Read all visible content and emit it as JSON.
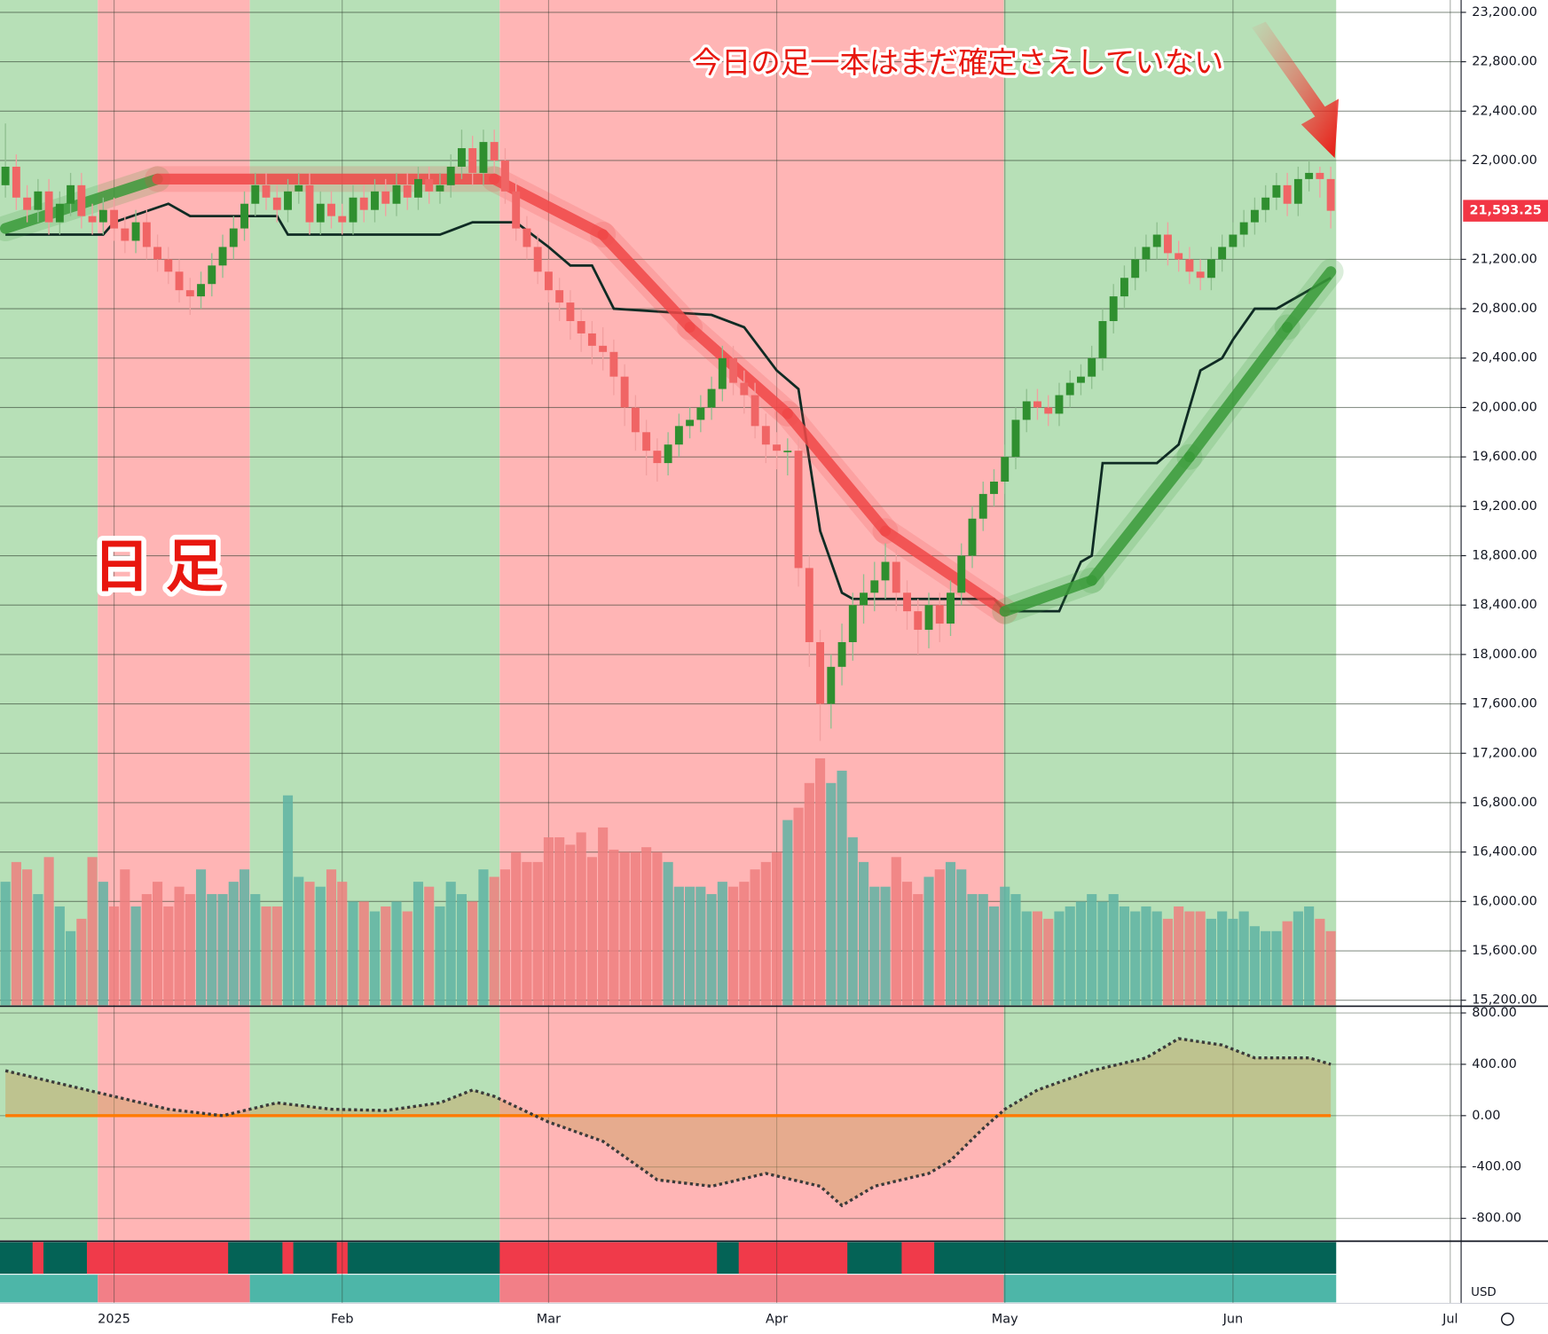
{
  "chart_data": {
    "type": "candlestick",
    "annotations": [
      "今日の足一本はまだ確定さえしていない",
      "日足"
    ],
    "currency": "USD",
    "grid": true,
    "xlim": [
      -0.5,
      134
    ],
    "xticks": [
      {
        "value": 10,
        "label": "2025"
      },
      {
        "value": 31,
        "label": "Feb"
      },
      {
        "value": 50,
        "label": "Mar"
      },
      {
        "value": 71,
        "label": "Apr"
      },
      {
        "value": 92,
        "label": "May"
      },
      {
        "value": 113,
        "label": "Jun"
      },
      {
        "value": 133,
        "label": "Jul"
      }
    ],
    "ylim": [
      15160,
      23300
    ],
    "yticks": [
      {
        "value": 15200,
        "label": "15,200.00"
      },
      {
        "value": 15600,
        "label": "15,600.00"
      },
      {
        "value": 16000,
        "label": "16,000.00"
      },
      {
        "value": 16400,
        "label": "16,400.00"
      },
      {
        "value": 16800,
        "label": "16,800.00"
      },
      {
        "value": 17200,
        "label": "17,200.00"
      },
      {
        "value": 17600,
        "label": "17,600.00"
      },
      {
        "value": 18000,
        "label": "18,000.00"
      },
      {
        "value": 18400,
        "label": "18,400.00"
      },
      {
        "value": 18800,
        "label": "18,800.00"
      },
      {
        "value": 19200,
        "label": "19,200.00"
      },
      {
        "value": 19600,
        "label": "19,600.00"
      },
      {
        "value": 20000,
        "label": "20,000.00"
      },
      {
        "value": 20400,
        "label": "20,400.00"
      },
      {
        "value": 20800,
        "label": "20,800.00"
      },
      {
        "value": 21200,
        "label": "21,200.00"
      },
      {
        "value": 22000,
        "label": "22,000.00"
      },
      {
        "value": 22400,
        "label": "22,400.00"
      },
      {
        "value": 22800,
        "label": "22,800.00"
      },
      {
        "value": 23200,
        "label": "23,200.00"
      }
    ],
    "last_price": {
      "value": 21593.25,
      "label": "21,593.25",
      "color": "#f23645"
    },
    "colors": {
      "up": "#2f8f2f",
      "down": "#f06565"
    },
    "open": [
      21800,
      21950,
      21700,
      21600,
      21750,
      21500,
      21650,
      21800,
      21550,
      21500,
      21600,
      21450,
      21350,
      21500,
      21300,
      21200,
      21100,
      20950,
      20900,
      21000,
      21150,
      21300,
      21450,
      21650,
      21800,
      21700,
      21600,
      21750,
      21800,
      21500,
      21650,
      21550,
      21500,
      21700,
      21600,
      21750,
      21650,
      21800,
      21700,
      21850,
      21750,
      21800,
      21950,
      22100,
      21900,
      22150,
      22000,
      21750,
      21450,
      21300,
      21100,
      20950,
      20850,
      20700,
      20600,
      20500,
      20450,
      20250,
      20000,
      19800,
      19650,
      19550,
      19700,
      19850,
      19900,
      20000,
      20150,
      20400,
      20200,
      20100,
      19850,
      19700,
      19650,
      19650,
      18700,
      18100,
      17600,
      17900,
      18100,
      18400,
      18500,
      18600,
      18750,
      18500,
      18350,
      18200,
      18400,
      18250,
      18500,
      18800,
      19100,
      19300,
      19400,
      19600,
      19900,
      20050,
      20000,
      19950,
      20100,
      20200,
      20250,
      20400,
      20700,
      20900,
      21050,
      21200,
      21300,
      21400,
      21250,
      21200,
      21100,
      21050,
      21200,
      21300,
      21400,
      21500,
      21600,
      21700,
      21800,
      21650,
      21850,
      21900,
      21850
    ],
    "high": [
      22300,
      22050,
      21800,
      21850,
      21850,
      21750,
      21900,
      21900,
      21650,
      21700,
      21700,
      21550,
      21600,
      21600,
      21400,
      21300,
      21200,
      21050,
      21100,
      21250,
      21400,
      21550,
      21750,
      21900,
      21900,
      21800,
      21850,
      21900,
      21900,
      21750,
      21750,
      21650,
      21800,
      21800,
      21850,
      21850,
      21900,
      21900,
      21950,
      21950,
      21900,
      22050,
      22250,
      22200,
      22250,
      22250,
      22100,
      21850,
      21550,
      21400,
      21200,
      21050,
      20950,
      20800,
      20700,
      20650,
      20550,
      20350,
      20100,
      19900,
      19750,
      19800,
      19950,
      20000,
      20100,
      20250,
      20500,
      20500,
      20300,
      20200,
      19950,
      19800,
      19750,
      19750,
      18800,
      18200,
      18000,
      18250,
      18500,
      18650,
      18750,
      18900,
      18850,
      18600,
      18450,
      18500,
      18500,
      18600,
      18900,
      19200,
      19400,
      19500,
      19700,
      20000,
      20150,
      20150,
      20100,
      20200,
      20300,
      20350,
      20500,
      20800,
      21000,
      21150,
      21300,
      21400,
      21500,
      21500,
      21350,
      21300,
      21200,
      21300,
      21400,
      21500,
      21600,
      21700,
      21800,
      21900,
      21900,
      21950,
      22000,
      21950,
      21950
    ],
    "low": [
      21700,
      21600,
      21500,
      21500,
      21400,
      21400,
      21550,
      21450,
      21400,
      21400,
      21350,
      21250,
      21250,
      21200,
      21100,
      21000,
      20850,
      20750,
      20800,
      20900,
      21050,
      21200,
      21350,
      21550,
      21600,
      21500,
      21500,
      21650,
      21400,
      21400,
      21450,
      21400,
      21400,
      21500,
      21500,
      21550,
      21550,
      21600,
      21600,
      21650,
      21650,
      21700,
      21850,
      21800,
      21800,
      21900,
      21650,
      21350,
      21200,
      21000,
      20850,
      20700,
      20550,
      20450,
      20350,
      20300,
      20100,
      19850,
      19650,
      19450,
      19400,
      19450,
      19600,
      19750,
      19800,
      19900,
      20050,
      20100,
      19950,
      19750,
      19550,
      19500,
      19450,
      18550,
      17900,
      17300,
      17400,
      17750,
      17950,
      18250,
      18350,
      18450,
      18350,
      18200,
      18000,
      18050,
      18100,
      18150,
      18400,
      18700,
      19000,
      19200,
      19300,
      19500,
      19800,
      19900,
      19850,
      19850,
      20000,
      20100,
      20150,
      20300,
      20600,
      20800,
      20950,
      21100,
      21200,
      21150,
      21100,
      21000,
      20950,
      20950,
      21100,
      21200,
      21300,
      21400,
      21500,
      21600,
      21550,
      21550,
      21750,
      21700,
      21450
    ],
    "close": [
      21950,
      21700,
      21600,
      21750,
      21500,
      21650,
      21800,
      21550,
      21500,
      21600,
      21450,
      21350,
      21500,
      21300,
      21200,
      21100,
      20950,
      20900,
      21000,
      21150,
      21300,
      21450,
      21650,
      21800,
      21700,
      21600,
      21750,
      21800,
      21500,
      21650,
      21550,
      21500,
      21700,
      21600,
      21750,
      21650,
      21800,
      21700,
      21850,
      21750,
      21800,
      21950,
      22100,
      21900,
      22150,
      22000,
      21750,
      21450,
      21300,
      21100,
      20950,
      20850,
      20700,
      20600,
      20500,
      20450,
      20250,
      20000,
      19800,
      19650,
      19550,
      19700,
      19850,
      19900,
      20000,
      20150,
      20400,
      20200,
      20100,
      19850,
      19700,
      19650,
      19650,
      18700,
      18100,
      17600,
      17900,
      18100,
      18400,
      18500,
      18600,
      18750,
      18500,
      18350,
      18200,
      18400,
      18250,
      18500,
      18800,
      19100,
      19300,
      19400,
      19600,
      19900,
      20050,
      20000,
      19950,
      20100,
      20200,
      20250,
      20400,
      20700,
      20900,
      21050,
      21200,
      21300,
      21400,
      21250,
      21200,
      21100,
      21050,
      21200,
      21300,
      21400,
      21500,
      21600,
      21700,
      21800,
      21650,
      21850,
      21900,
      21850,
      21593.25
    ],
    "volume": {
      "vlim": [
        0,
        100
      ],
      "up_color": "#5fb3a3",
      "down_color": "#ef7f7f",
      "values": [
        50,
        58,
        55,
        45,
        60,
        40,
        30,
        35,
        60,
        50,
        40,
        55,
        40,
        45,
        50,
        40,
        48,
        45,
        55,
        45,
        45,
        50,
        55,
        45,
        40,
        40,
        85,
        52,
        50,
        48,
        55,
        50,
        42,
        42,
        38,
        40,
        42,
        38,
        50,
        48,
        40,
        50,
        45,
        42,
        55,
        52,
        55,
        62,
        58,
        58,
        68,
        68,
        65,
        70,
        60,
        72,
        63,
        62,
        62,
        64,
        62,
        58,
        48,
        48,
        48,
        45,
        50,
        48,
        50,
        55,
        58,
        62,
        75,
        80,
        90,
        100,
        90,
        95,
        68,
        58,
        48,
        48,
        60,
        50,
        45,
        52,
        55,
        58,
        55,
        45,
        45,
        40,
        48,
        45,
        38,
        38,
        35,
        38,
        40,
        42,
        45,
        42,
        45,
        40,
        38,
        40,
        38,
        35,
        40,
        38,
        38,
        35,
        38,
        35,
        38,
        32,
        30,
        30,
        34,
        38,
        40,
        35,
        30
      ]
    },
    "bands": [
      {
        "from": -0.5,
        "to": 8.5,
        "color": "#b7e0b7",
        "bar_color": "#4db6a8"
      },
      {
        "from": 8.5,
        "to": 22.5,
        "color": "#ffb5b5",
        "bar_color": "#f27f87"
      },
      {
        "from": 22.5,
        "to": 45.5,
        "color": "#b7e0b7",
        "bar_color": "#4db6a8"
      },
      {
        "from": 45.5,
        "to": 91.9,
        "color": "#ffb5b5",
        "bar_color": "#f27f87"
      },
      {
        "from": 91.9,
        "to": 122.5,
        "color": "#b7e0b7",
        "bar_color": "#4db6a8"
      }
    ],
    "ma": {
      "x": [
        0,
        14,
        45,
        55,
        63,
        72,
        81,
        92,
        100,
        109,
        118,
        122
      ],
      "values": [
        21450,
        21850,
        21850,
        21400,
        20650,
        19950,
        19000,
        18350,
        18600,
        19600,
        20650,
        21100
      ],
      "colors": [
        "#3a9a3a",
        "#f04848",
        "#f04848",
        "#f04848",
        "#f04848",
        "#f04848",
        "#f04848",
        "#3a9a3a",
        "#3a9a3a",
        "#3a9a3a",
        "#3a9a3a",
        "#3a9a3a"
      ]
    },
    "trail": {
      "color": "#0f2b24",
      "x": [
        0,
        9,
        10,
        15,
        17,
        25,
        26,
        40,
        43,
        47,
        50,
        52,
        54,
        56,
        65,
        68,
        71,
        73,
        75,
        77,
        78,
        91,
        92,
        97,
        99,
        100,
        101,
        106,
        108,
        110,
        112,
        113,
        115,
        117,
        119,
        121,
        122
      ],
      "values": [
        21400,
        21400,
        21500,
        21650,
        21550,
        21550,
        21400,
        21400,
        21500,
        21500,
        21300,
        21150,
        21150,
        20800,
        20750,
        20650,
        20300,
        20150,
        19000,
        18500,
        18450,
        18450,
        18350,
        18350,
        18750,
        18800,
        19550,
        19550,
        19700,
        20300,
        20400,
        20550,
        20800,
        20800,
        20900,
        21000,
        21050
      ]
    },
    "oscillator": {
      "color": "#3a3a3a",
      "fill": "#c8a060",
      "zero_color": "#ff7a00",
      "ylim": [
        -970,
        845
      ],
      "yticks": [
        {
          "value": -800,
          "label": "-800.00"
        },
        {
          "value": -400,
          "label": "-400.00"
        },
        {
          "value": 0,
          "label": "0.00"
        },
        {
          "value": 400,
          "label": "400.00"
        },
        {
          "value": 800,
          "label": "800.00"
        }
      ],
      "x": [
        0,
        5,
        10,
        15,
        20,
        25,
        30,
        35,
        40,
        43,
        45,
        50,
        55,
        60,
        65,
        70,
        75,
        77,
        80,
        85,
        87,
        90,
        92,
        95,
        100,
        105,
        108,
        112,
        115,
        120,
        122
      ],
      "values": [
        350,
        250,
        150,
        50,
        0,
        100,
        50,
        40,
        100,
        200,
        150,
        -50,
        -200,
        -500,
        -550,
        -450,
        -550,
        -700,
        -550,
        -450,
        -350,
        -100,
        50,
        200,
        350,
        450,
        600,
        550,
        450,
        450,
        400
      ]
    },
    "status": {
      "base_color": "#046356",
      "color": "#f03a4a",
      "segments": [
        [
          2.5,
          3.5
        ],
        [
          7.5,
          20.5
        ],
        [
          25.5,
          26.5
        ],
        [
          30.5,
          31.5
        ],
        [
          45.5,
          65.5
        ],
        [
          67.5,
          77.5
        ],
        [
          82.5,
          85.5
        ]
      ]
    }
  }
}
